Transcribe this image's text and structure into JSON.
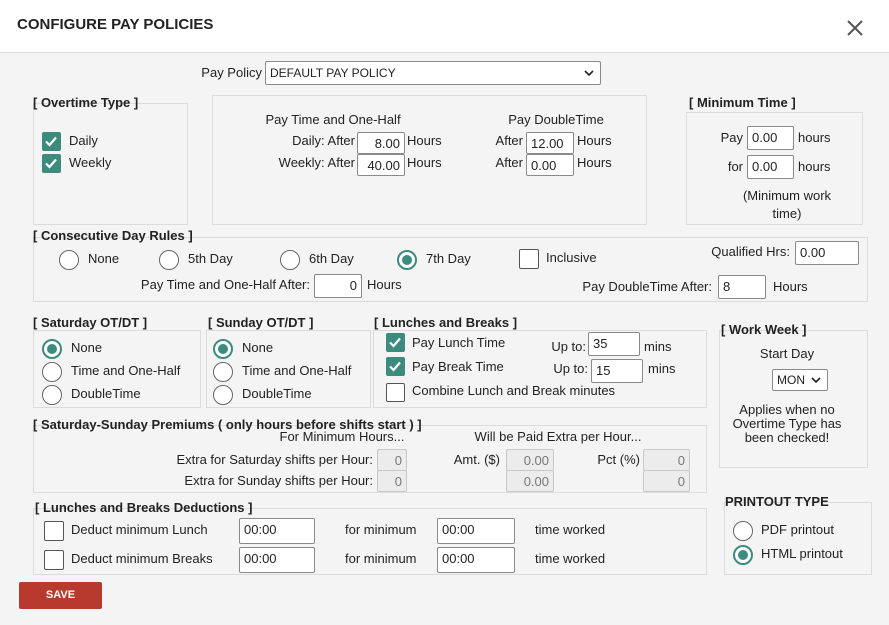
{
  "header": {
    "title": "CONFIGURE PAY POLICIES"
  },
  "pay_policy": {
    "label": "Pay Policy",
    "value": "DEFAULT PAY POLICY"
  },
  "overtime_type": {
    "title": "[ Overtime Type ]",
    "items": [
      {
        "label": "Daily",
        "checked": true
      },
      {
        "label": "Weekly",
        "checked": true
      }
    ]
  },
  "time_and_half": {
    "title": "Pay Time and One-Half",
    "rows": [
      {
        "label": "Daily: After",
        "value": "8.00",
        "unit": "Hours"
      },
      {
        "label": "Weekly: After",
        "value": "40.00",
        "unit": "Hours"
      }
    ]
  },
  "double_time": {
    "title": "Pay DoubleTime",
    "rows": [
      {
        "label": "After",
        "value": "12.00",
        "unit": "Hours"
      },
      {
        "label": "After",
        "value": "0.00",
        "unit": "Hours"
      }
    ]
  },
  "minimum_time": {
    "title": "[ Minimum Time ]",
    "rows": [
      {
        "label": "Pay",
        "value": "0.00",
        "unit": "hours"
      },
      {
        "label": "for",
        "value": "0.00",
        "unit": "hours"
      }
    ],
    "note": "(Minimum work time)"
  },
  "consecutive": {
    "title": "[ Consecutive Day Rules ]",
    "options": [
      "None",
      "5th Day",
      "6th Day",
      "7th Day"
    ],
    "selected": 3,
    "inclusive": {
      "label": "Inclusive",
      "checked": false
    },
    "qualified": {
      "label": "Qualified Hrs:",
      "value": "0.00"
    },
    "half_after": {
      "label": "Pay Time and One-Half After:",
      "value": "0",
      "unit": "Hours"
    },
    "double_after": {
      "label": "Pay DoubleTime After:",
      "value": "8",
      "unit": "Hours"
    }
  },
  "saturday": {
    "title": "[ Saturday OT/DT ]",
    "options": [
      "None",
      "Time and One-Half",
      "DoubleTime"
    ],
    "selected": 0
  },
  "sunday": {
    "title": "[ Sunday OT/DT ]",
    "options": [
      "None",
      "Time and One-Half",
      "DoubleTime"
    ],
    "selected": 0
  },
  "lunches": {
    "title": "[ Lunches and Breaks ]",
    "rows": [
      {
        "label": "Pay Lunch Time",
        "checked": true,
        "limit_label": "Up to:",
        "value": "35",
        "unit": "mins"
      },
      {
        "label": "Pay Break Time",
        "checked": true,
        "limit_label": "Up to:",
        "value": "15",
        "unit": "mins"
      }
    ],
    "combine": {
      "label": "Combine Lunch and Break minutes",
      "checked": false
    }
  },
  "work_week": {
    "title": "[ Work Week ]",
    "label": "Start Day",
    "value": "MON",
    "note": "Applies when no Overtime Type has been checked!"
  },
  "premiums": {
    "title": "[ Saturday-Sunday Premiums ( only hours before shifts start ) ]",
    "col_min": "For Minimum Hours...",
    "col_extra": "Will be Paid Extra per Hour...",
    "amt_label": "Amt. ($)",
    "pct_label": "Pct (%)",
    "rows": [
      {
        "label": "Extra for Saturday shifts per Hour:",
        "min": "0",
        "amt": "0.00",
        "pct": "0"
      },
      {
        "label": "Extra for Sunday shifts per Hour:",
        "min": "0",
        "amt": "0.00",
        "pct": "0"
      }
    ]
  },
  "deductions": {
    "title": "[ Lunches and Breaks Deductions ]",
    "rows": [
      {
        "label": "Deduct minimum Lunch",
        "checked": false,
        "value": "00:00",
        "min_label": "for minimum",
        "min_value": "00:00",
        "suffix": "time worked"
      },
      {
        "label": "Deduct minimum Breaks",
        "checked": false,
        "value": "00:00",
        "min_label": "for minimum",
        "min_value": "00:00",
        "suffix": "time worked"
      }
    ]
  },
  "printout": {
    "title": "PRINTOUT TYPE",
    "options": [
      "PDF printout",
      "HTML printout"
    ],
    "selected": 1
  },
  "save": "SAVE"
}
